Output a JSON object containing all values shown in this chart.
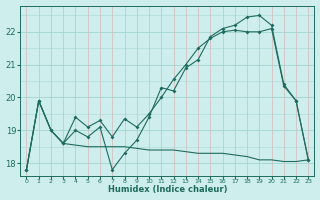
{
  "xlabel": "Humidex (Indice chaleur)",
  "background_color": "#ceeeed",
  "grid_color_teal": "#a8d8d4",
  "grid_color_pink": "#d4b8b8",
  "line_color": "#1e6b5e",
  "xlim": [
    -0.5,
    23.5
  ],
  "ylim": [
    17.6,
    22.8
  ],
  "xticks": [
    0,
    1,
    2,
    3,
    4,
    5,
    6,
    7,
    8,
    9,
    10,
    11,
    12,
    13,
    14,
    15,
    16,
    17,
    18,
    19,
    20,
    21,
    22,
    23
  ],
  "yticks": [
    18,
    19,
    20,
    21,
    22
  ],
  "s1_x": [
    0,
    1,
    2,
    3,
    4,
    5,
    6,
    7,
    8,
    9,
    10,
    11,
    12,
    13,
    14,
    15,
    16,
    17,
    18,
    19,
    20,
    21,
    22,
    23
  ],
  "s1_y": [
    17.8,
    19.9,
    19.0,
    18.6,
    19.0,
    18.8,
    19.1,
    17.8,
    18.3,
    18.7,
    19.4,
    20.3,
    20.2,
    20.9,
    21.15,
    21.85,
    22.1,
    22.2,
    22.45,
    22.5,
    22.2,
    20.4,
    19.9,
    18.1
  ],
  "s2_x": [
    0,
    1,
    2,
    3,
    4,
    5,
    6,
    7,
    8,
    9,
    10,
    11,
    12,
    13,
    14,
    15,
    16,
    17,
    18,
    19,
    20,
    21,
    22,
    23
  ],
  "s2_y": [
    17.8,
    19.9,
    19.0,
    18.6,
    19.4,
    19.1,
    19.3,
    18.8,
    19.35,
    19.1,
    19.5,
    20.0,
    20.55,
    21.0,
    21.5,
    21.8,
    22.0,
    22.05,
    22.0,
    22.0,
    22.1,
    20.35,
    19.9,
    18.1
  ],
  "s3_x": [
    0,
    1,
    2,
    3,
    4,
    5,
    6,
    7,
    8,
    9,
    10,
    11,
    12,
    13,
    14,
    15,
    16,
    17,
    18,
    19,
    20,
    21,
    22,
    23
  ],
  "s3_y": [
    17.8,
    19.9,
    19.0,
    18.6,
    18.55,
    18.5,
    18.5,
    18.5,
    18.5,
    18.45,
    18.4,
    18.4,
    18.4,
    18.35,
    18.3,
    18.3,
    18.3,
    18.25,
    18.2,
    18.1,
    18.1,
    18.05,
    18.05,
    18.1
  ]
}
